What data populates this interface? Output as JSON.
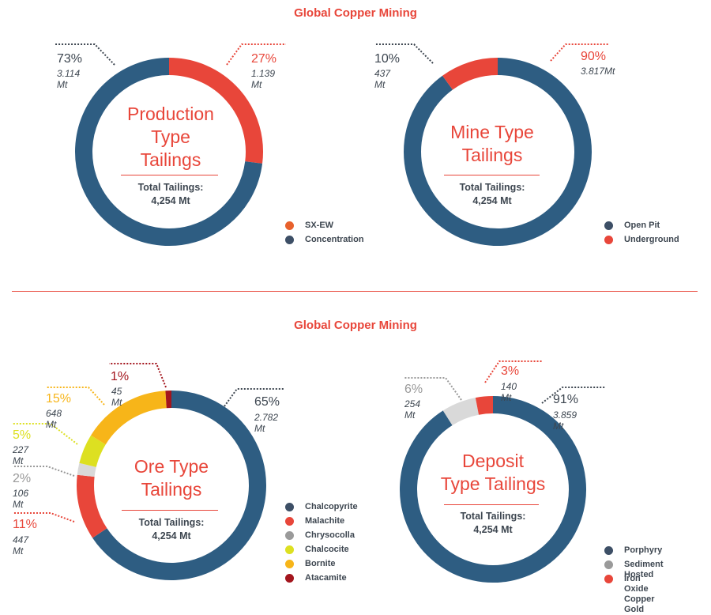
{
  "section_title_top": "Global Copper Mining",
  "section_title_bottom": "Global Copper Mining",
  "total_label": "Total Tailings:",
  "total_value": "4,254 Mt",
  "colors": {
    "blue": "#2e5d82",
    "red": "#e8463a",
    "gray": "#d9d9d9",
    "yellow": "#dde021",
    "orange": "#f7b519",
    "darkred": "#a3151d"
  },
  "chart_data": [
    {
      "type": "pie",
      "title": "Production Type Tailings",
      "title_lines": [
        "Production",
        "Type",
        "Tailings"
      ],
      "total": "4,254 Mt",
      "slices": [
        {
          "name": "SX-EW",
          "percent": 27,
          "pct_label": "27%",
          "value_label": "1.139 Mt",
          "color": "#e8463a"
        },
        {
          "name": "Concentration",
          "percent": 73,
          "pct_label": "73%",
          "value_label": "3.114 Mt",
          "color": "#2e5d82"
        }
      ],
      "legend": [
        {
          "name": "SX-EW",
          "color": "#e8612c"
        },
        {
          "name": "Concentration",
          "color": "#3d4f66"
        }
      ]
    },
    {
      "type": "pie",
      "title": "Mine Type Tailings",
      "title_lines": [
        "Mine Type",
        "Tailings"
      ],
      "total": "4,254 Mt",
      "slices": [
        {
          "name": "Open Pit",
          "percent": 90,
          "pct_label": "90%",
          "value_label": "3.817Mt",
          "color": "#2e5d82"
        },
        {
          "name": "Underground",
          "percent": 10,
          "pct_label": "10%",
          "value_label": "437 Mt",
          "color": "#e8463a"
        }
      ],
      "legend": [
        {
          "name": "Open Pit",
          "color": "#3d4f66"
        },
        {
          "name": "Underground",
          "color": "#e8463a"
        }
      ]
    },
    {
      "type": "pie",
      "title": "Ore Type Tailings",
      "title_lines": [
        "Ore Type",
        "Tailings"
      ],
      "total": "4,254 Mt",
      "slices": [
        {
          "name": "Chalcopyrite",
          "percent": 65,
          "pct_label": "65%",
          "value_label": "2.782 Mt",
          "color": "#2e5d82"
        },
        {
          "name": "Malachite",
          "percent": 11,
          "pct_label": "11%",
          "value_label": "447 Mt",
          "color": "#e8463a"
        },
        {
          "name": "Chrysocolla",
          "percent": 2,
          "pct_label": "2%",
          "value_label": "106 Mt",
          "color": "#d9d9d9"
        },
        {
          "name": "Chalcocite",
          "percent": 5,
          "pct_label": "5%",
          "value_label": "227 Mt",
          "color": "#dde021"
        },
        {
          "name": "Bornite",
          "percent": 15,
          "pct_label": "15%",
          "value_label": "648 Mt",
          "color": "#f7b519"
        },
        {
          "name": "Atacamite",
          "percent": 1,
          "pct_label": "1%",
          "value_label": "45 Mt",
          "color": "#a3151d"
        }
      ],
      "legend": [
        {
          "name": "Chalcopyrite",
          "color": "#3d4f66"
        },
        {
          "name": "Malachite",
          "color": "#e8463a"
        },
        {
          "name": "Chrysocolla",
          "color": "#9a9a9a"
        },
        {
          "name": "Chalcocite",
          "color": "#dde021"
        },
        {
          "name": "Bornite",
          "color": "#f7b519"
        },
        {
          "name": "Atacamite",
          "color": "#a3151d"
        }
      ]
    },
    {
      "type": "pie",
      "title": "Deposit Type Tailings",
      "title_lines": [
        "Deposit",
        "Type Tailings"
      ],
      "total": "4,254 Mt",
      "slices": [
        {
          "name": "Porphyry",
          "percent": 91,
          "pct_label": "91%",
          "value_label": "3.859 Mt",
          "color": "#2e5d82"
        },
        {
          "name": "Sediment Hosted",
          "percent": 6,
          "pct_label": "6%",
          "value_label": "254 Mt",
          "color": "#d9d9d9"
        },
        {
          "name": "Iron Oxide Copper Gold",
          "percent": 3,
          "pct_label": "3%",
          "value_label": "140 Mt",
          "color": "#e8463a"
        }
      ],
      "legend": [
        {
          "name": "Porphyry",
          "color": "#3d4f66"
        },
        {
          "name": "Sediment Hosted",
          "color": "#9a9a9a"
        },
        {
          "name": "Iron Oxide",
          "name2": "Copper Gold",
          "color": "#e8463a"
        }
      ]
    }
  ]
}
